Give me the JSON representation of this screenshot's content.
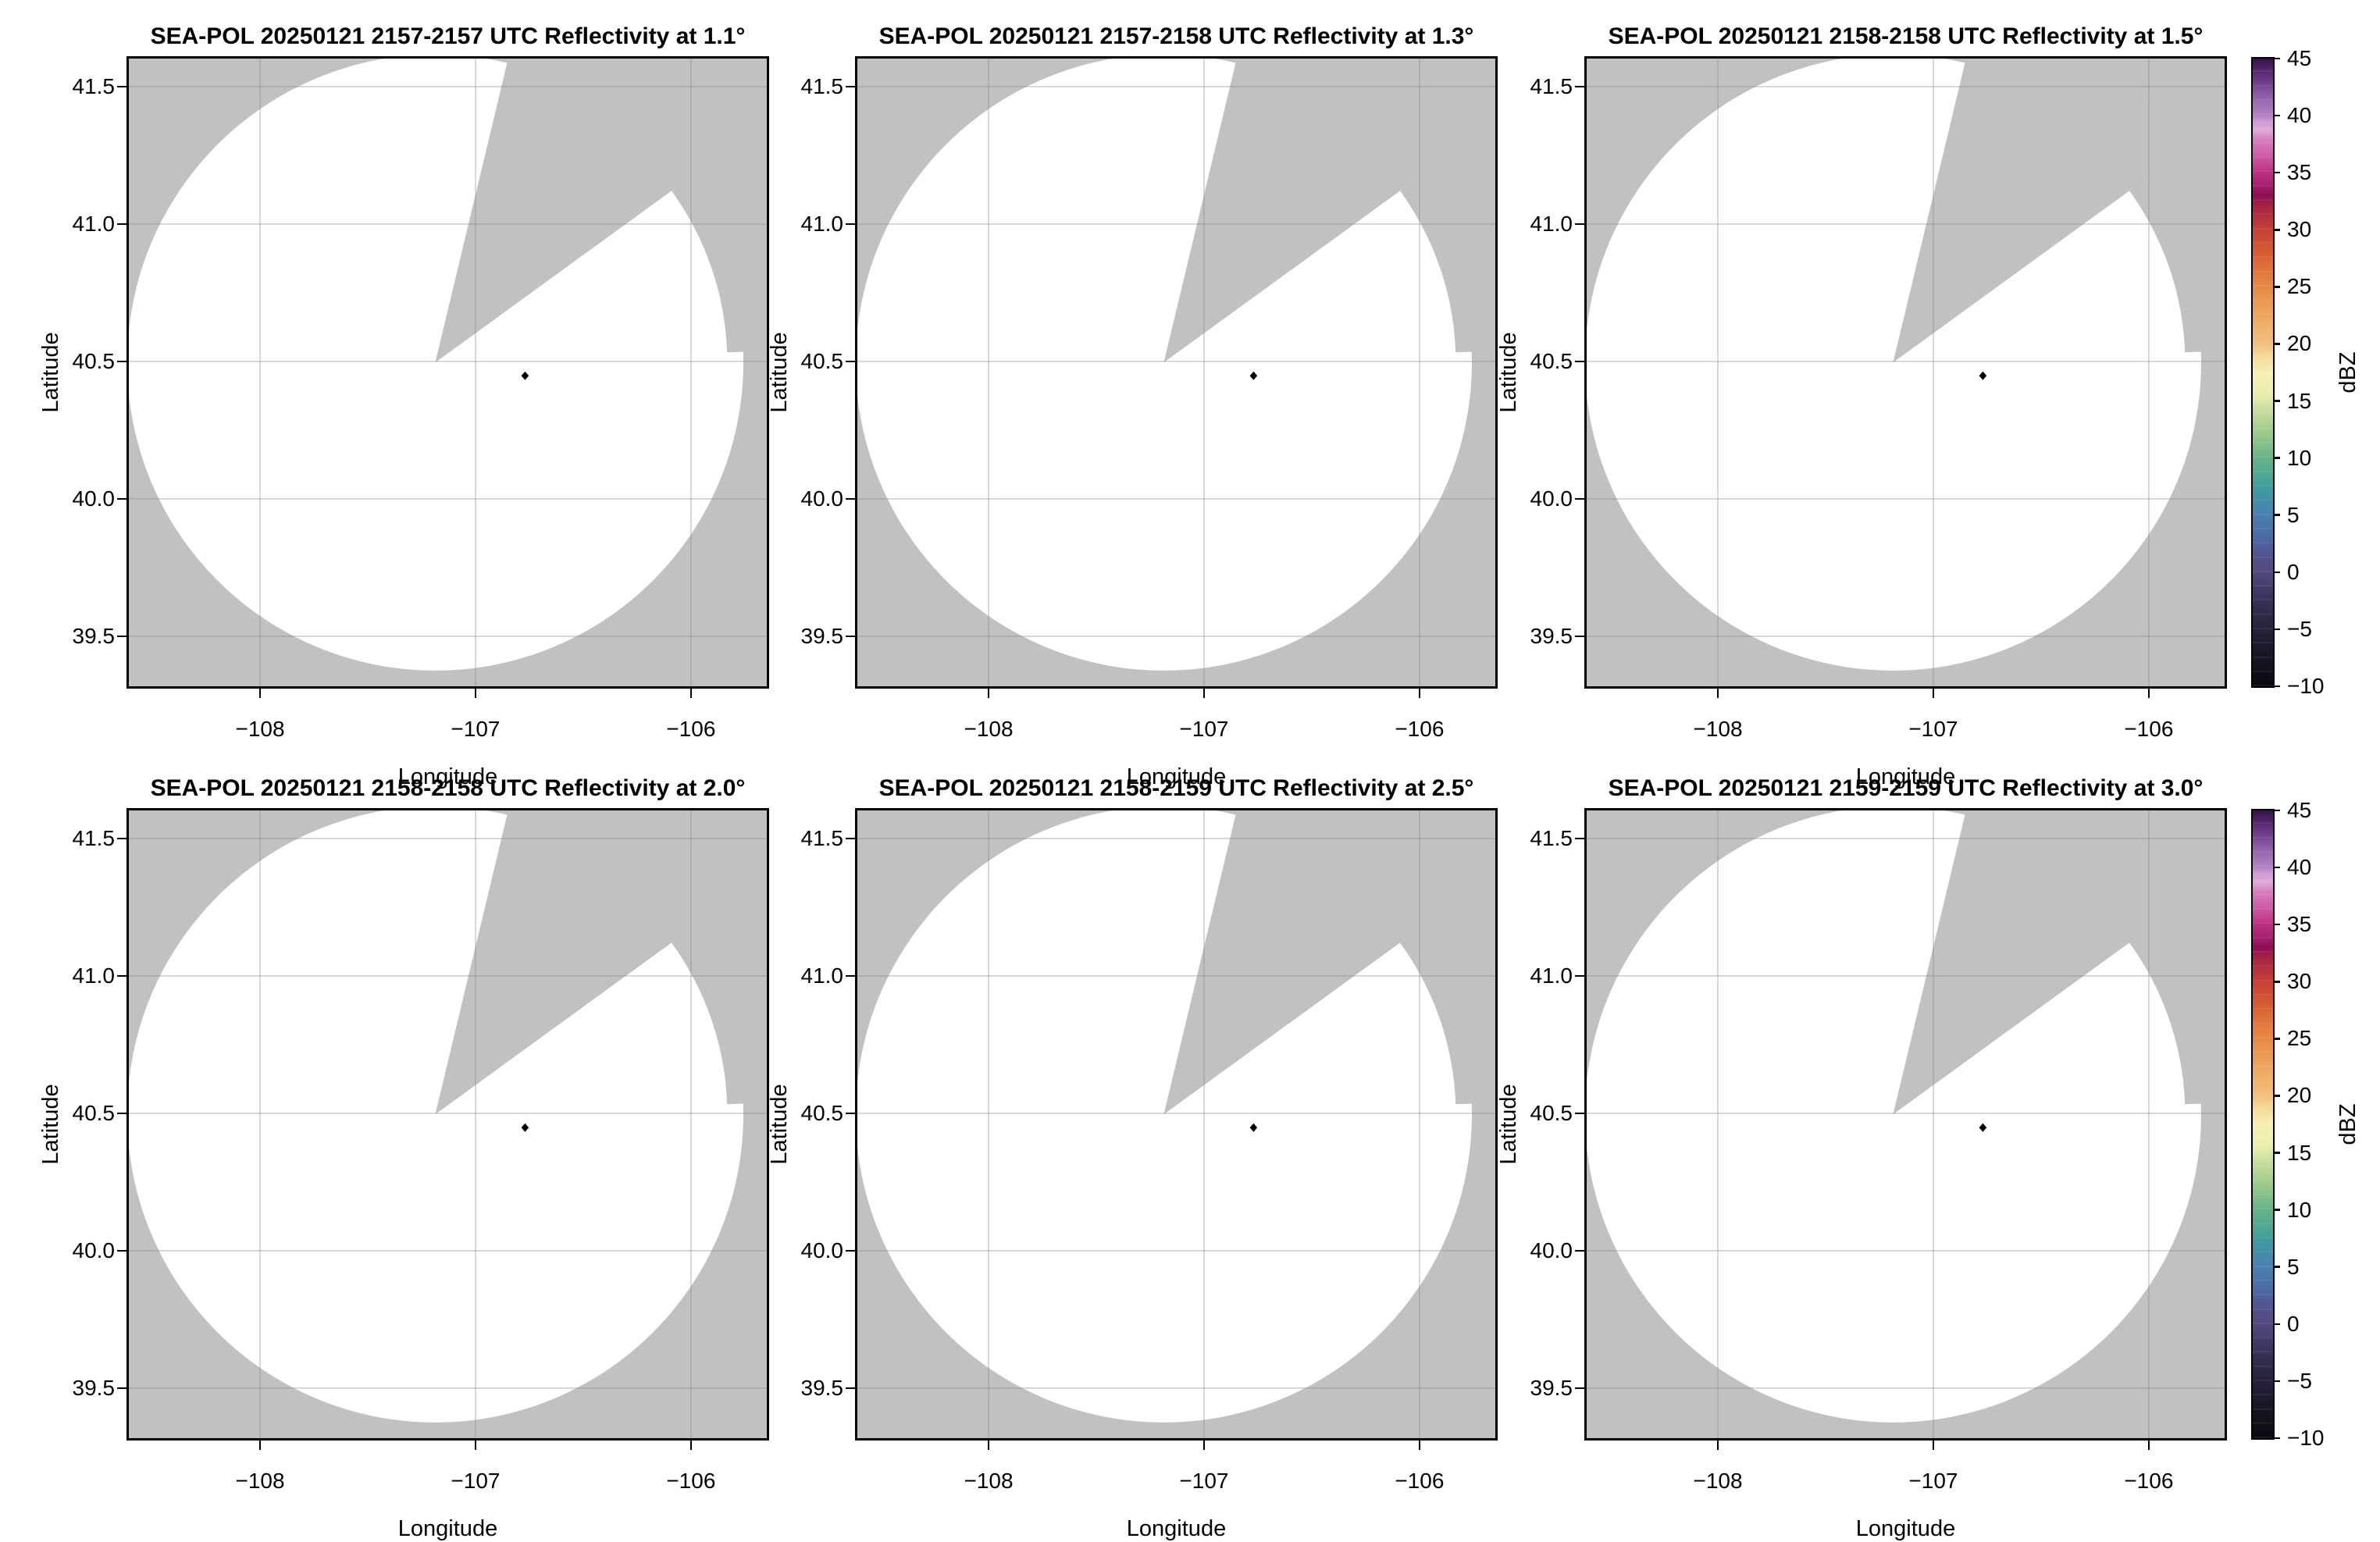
{
  "panels": [
    {
      "title": "SEA-POL 20250121 2157-2157 UTC Reflectivity at 1.1°",
      "time_utc": "2157-2157",
      "elevation_deg": 1.1
    },
    {
      "title": "SEA-POL 20250121 2157-2158 UTC Reflectivity at 1.3°",
      "time_utc": "2157-2158",
      "elevation_deg": 1.3
    },
    {
      "title": "SEA-POL 20250121 2158-2158 UTC Reflectivity at 1.5°",
      "time_utc": "2158-2158",
      "elevation_deg": 1.5
    },
    {
      "title": "SEA-POL 20250121 2158-2158 UTC Reflectivity at 2.0°",
      "time_utc": "2158-2158",
      "elevation_deg": 2.0
    },
    {
      "title": "SEA-POL 20250121 2158-2159 UTC Reflectivity at 2.5°",
      "time_utc": "2158-2159",
      "elevation_deg": 2.5
    },
    {
      "title": "SEA-POL 20250121 2159-2159 UTC Reflectivity at 3.0°",
      "time_utc": "2159-2159",
      "elevation_deg": 3.0
    }
  ],
  "axes": {
    "xlabel": "Longitude",
    "ylabel": "Latitude",
    "xticks": [
      "−108",
      "−107",
      "−106"
    ],
    "yticks": [
      "41.5",
      "41.0",
      "40.5",
      "40.0",
      "39.5"
    ]
  },
  "colorbar": {
    "label": "dBZ",
    "ticks": [
      "45",
      "40",
      "35",
      "30",
      "25",
      "20",
      "15",
      "10",
      "5",
      "0",
      "−5",
      "−10"
    ],
    "vmin": -10,
    "vmax": 45,
    "gradient_stops_bottom_to_top": [
      [
        0,
        "#0b0810"
      ],
      [
        4,
        "#171320"
      ],
      [
        7.3,
        "#221c31"
      ],
      [
        10.9,
        "#2e2744"
      ],
      [
        14.5,
        "#3d3560"
      ],
      [
        18.2,
        "#55497e"
      ],
      [
        21,
        "#51548f"
      ],
      [
        23.6,
        "#4b69a4"
      ],
      [
        27.3,
        "#4a80b2"
      ],
      [
        31,
        "#3f97a0"
      ],
      [
        33,
        "#49a596"
      ],
      [
        36.4,
        "#67b38a"
      ],
      [
        40,
        "#97c98a"
      ],
      [
        43.6,
        "#c4db9c"
      ],
      [
        46.4,
        "#e9edaf"
      ],
      [
        50,
        "#f6f0b6"
      ],
      [
        52.7,
        "#f4d996"
      ],
      [
        54.5,
        "#f1c07e"
      ],
      [
        58.2,
        "#eeac64"
      ],
      [
        61.8,
        "#e9964f"
      ],
      [
        65.5,
        "#e27c3e"
      ],
      [
        69.1,
        "#d65c32"
      ],
      [
        72.7,
        "#c64137"
      ],
      [
        76.4,
        "#a62544"
      ],
      [
        78.2,
        "#8d0e55"
      ],
      [
        80,
        "#a92272"
      ],
      [
        81.8,
        "#bb3181"
      ],
      [
        84.5,
        "#cd5ba5"
      ],
      [
        87.3,
        "#d883c0"
      ],
      [
        88.5,
        "#e0aad6"
      ],
      [
        90,
        "#cf9cd2"
      ],
      [
        90.9,
        "#b183c4"
      ],
      [
        93.6,
        "#9465ab"
      ],
      [
        96.4,
        "#6f3a8c"
      ],
      [
        99,
        "#471d5e"
      ],
      [
        100,
        "#341049"
      ]
    ]
  },
  "colors": {
    "no_data_gray": "#c1c1c1",
    "echo_free_white": "#ffffff",
    "grid_line": "rgba(130,130,130,0.38)",
    "marker_black": "#000000"
  },
  "chart_data": {
    "type": "heatmap",
    "description": "Six radar PPI reflectivity panels (2 rows × 3 columns) from the SEA-POL radar on 2025-01-21, elevations 1.1°–3.0°. Every panel shows an echo-free scan: the radar coverage circle is blank (white, no reflectivity values plotted), gray denotes no-data/outside-scan area, with a beam-blockage wedge sector northeast of the radar and a small black diamond site marker.",
    "panels": [
      {
        "title": "SEA-POL 20250121 2157-2157 UTC Reflectivity at 1.1°",
        "time_utc": "2157-2157",
        "elevation_deg": 1.1
      },
      {
        "title": "SEA-POL 20250121 2157-2158 UTC Reflectivity at 1.3°",
        "time_utc": "2157-2158",
        "elevation_deg": 1.3
      },
      {
        "title": "SEA-POL 20250121 2158-2158 UTC Reflectivity at 1.5°",
        "time_utc": "2158-2158",
        "elevation_deg": 1.5
      },
      {
        "title": "SEA-POL 20250121 2158-2158 UTC Reflectivity at 2.0°",
        "time_utc": "2158-2158",
        "elevation_deg": 2.0
      },
      {
        "title": "SEA-POL 20250121 2158-2159 UTC Reflectivity at 2.5°",
        "time_utc": "2158-2159",
        "elevation_deg": 2.5
      },
      {
        "title": "SEA-POL 20250121 2159-2159 UTC Reflectivity at 3.0°",
        "time_utc": "2159-2159",
        "elevation_deg": 3.0
      }
    ],
    "x_range": [
      -108.609,
      -105.648
    ],
    "y_range": [
      39.318,
      41.602
    ],
    "xticks": [
      -108,
      -107,
      -106
    ],
    "yticks": [
      41.5,
      41.0,
      40.5,
      40.0,
      39.5
    ],
    "radar_center": {
      "lon": -107.187,
      "lat": 40.496
    },
    "coverage_radius_deg_lon": 1.43,
    "blocked_sector_azimuth_deg": [
      13.5,
      54
    ],
    "short_range_sector": {
      "azimuth_deg": [
        54,
        88
      ],
      "inner_radius_frac": 0.948
    },
    "site_marker": {
      "lon": -106.77,
      "lat": 40.448
    },
    "colorbar": {
      "label": "dBZ",
      "min": -10,
      "max": 45,
      "tick_step": 5
    },
    "grid": true,
    "legend_position": "right-colorbar-per-row"
  }
}
